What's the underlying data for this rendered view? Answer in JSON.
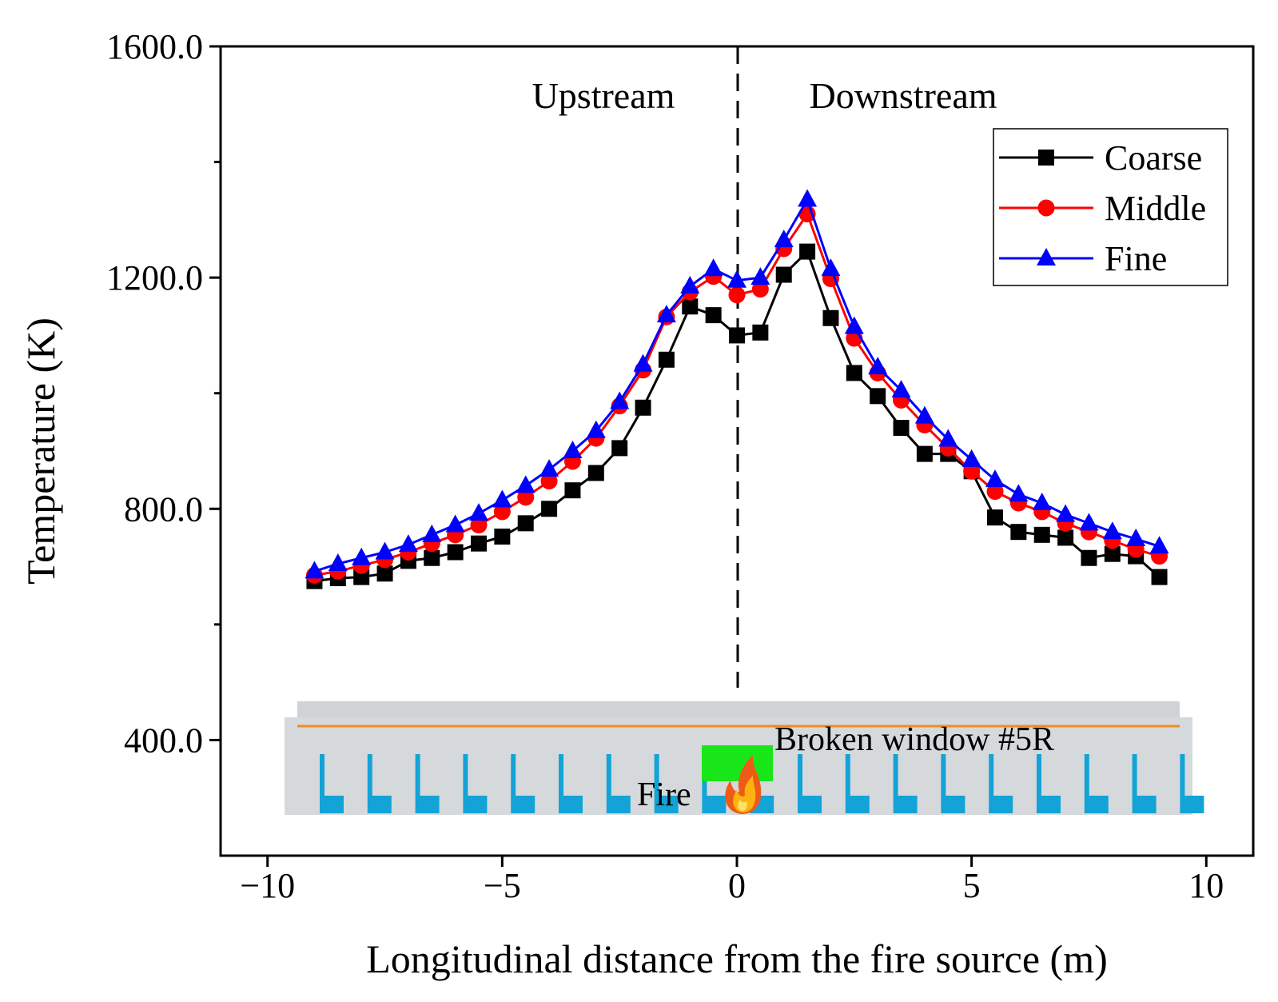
{
  "chart_data": {
    "type": "line",
    "title": "",
    "xlabel": "Longitudinal distance from the fire source (m)",
    "ylabel": "Temperature (K)",
    "xlim": [
      -11,
      11
    ],
    "ylim": [
      200,
      1600
    ],
    "xticks": [
      -10,
      -5,
      0,
      5,
      10
    ],
    "xtick_labels": [
      "−10",
      "−5",
      "0",
      "5",
      "10"
    ],
    "yticks": [
      400,
      800,
      1200,
      1600
    ],
    "ytick_labels": [
      "400.0",
      "800.0",
      "1200.0",
      "1600.0"
    ],
    "yminor_ticks": [
      600,
      1000,
      1400
    ],
    "legend_position": "top-right",
    "x": [
      -9,
      -8.5,
      -8,
      -7.5,
      -7,
      -6.5,
      -6,
      -5.5,
      -5,
      -4.5,
      -4,
      -3.5,
      -3,
      -2.5,
      -2,
      -1.5,
      -1,
      -0.5,
      0,
      0.5,
      1,
      1.5,
      2,
      2.5,
      3,
      3.5,
      4,
      4.5,
      5,
      5.5,
      6,
      6.5,
      7,
      7.5,
      8,
      8.5,
      9
    ],
    "series": [
      {
        "name": "Coarse",
        "color": "#000000",
        "marker": "square",
        "values": [
          675,
          680,
          682,
          688,
          710,
          715,
          725,
          740,
          752,
          775,
          800,
          832,
          862,
          905,
          975,
          1058,
          1150,
          1135,
          1100,
          1105,
          1205,
          1245,
          1130,
          1035,
          995,
          940,
          895,
          895,
          865,
          785,
          760,
          755,
          750,
          715,
          722,
          718,
          682
        ]
      },
      {
        "name": "Middle",
        "color": "#ff0000",
        "marker": "circle",
        "values": [
          685,
          692,
          702,
          712,
          725,
          740,
          755,
          772,
          795,
          820,
          848,
          882,
          922,
          978,
          1040,
          1132,
          1175,
          1202,
          1170,
          1180,
          1250,
          1310,
          1198,
          1095,
          1035,
          988,
          945,
          905,
          865,
          830,
          810,
          795,
          775,
          760,
          745,
          730,
          718
        ]
      },
      {
        "name": "Fine",
        "color": "#0000ff",
        "marker": "triangle",
        "values": [
          692,
          705,
          715,
          725,
          738,
          755,
          772,
          792,
          815,
          840,
          868,
          900,
          935,
          985,
          1050,
          1135,
          1185,
          1215,
          1195,
          1200,
          1265,
          1335,
          1215,
          1115,
          1045,
          1005,
          960,
          920,
          885,
          850,
          825,
          810,
          790,
          775,
          760,
          748,
          735
        ]
      }
    ],
    "annotations": {
      "upstream": "Upstream",
      "downstream": "Downstream",
      "broken_window": "Broken window #5R",
      "fire": "Fire",
      "divider_x": 0
    }
  },
  "colors": {
    "inset_body": "#d5d9db",
    "inset_roof": "#d0d3d5",
    "inset_line": "#f08a24",
    "inset_seats": "#13a3d6",
    "inset_window": "#18e618"
  }
}
